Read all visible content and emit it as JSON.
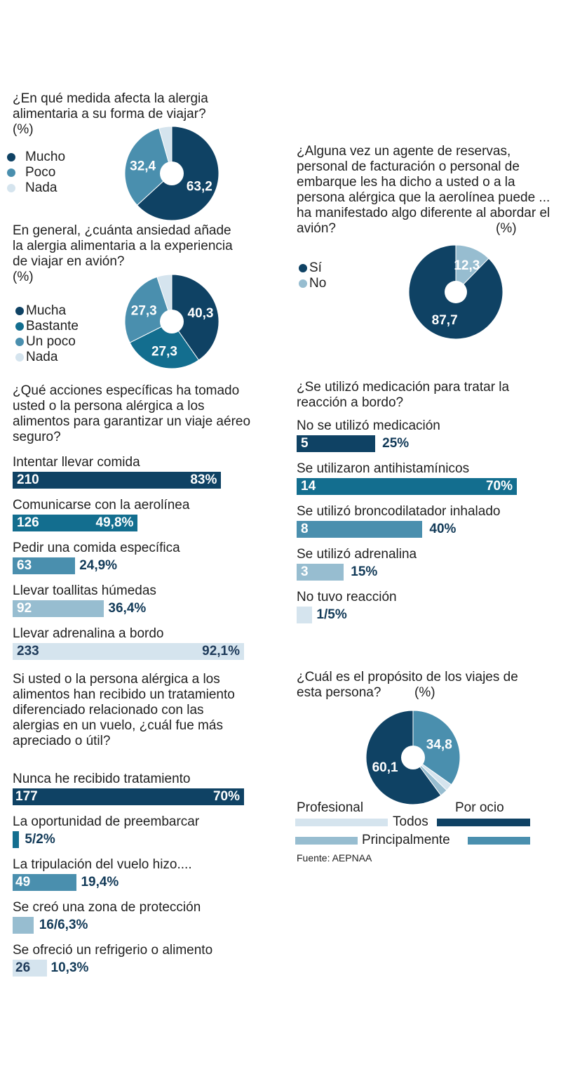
{
  "colors": {
    "dark": "#0f4264",
    "teal": "#136e8f",
    "mid": "#4a8fae",
    "light": "#97bdd0",
    "pale": "#d5e4ee"
  },
  "chart_data": [
    {
      "id": "pie1",
      "type": "pie",
      "title": "¿En qué medida afecta la alergia alimentaria a su forma de viajar?",
      "unit": "(%)",
      "legend": [
        "Mucho",
        "Poco",
        "Nada"
      ],
      "values": [
        63.2,
        32.4,
        4.4
      ],
      "labels": [
        "63,2",
        "32,4",
        ""
      ]
    },
    {
      "id": "pie2",
      "type": "pie",
      "title": "En general, ¿cuánta ansiedad añade la alergia alimentaria a la experiencia de viajar en avión?",
      "unit": "(%)",
      "legend": [
        "Mucha",
        "Bastante",
        "Un poco",
        "Nada"
      ],
      "values": [
        40.3,
        27.3,
        27.3,
        5.1
      ],
      "labels": [
        "40,3",
        "27,3",
        "27,3",
        ""
      ]
    },
    {
      "id": "bars1",
      "type": "bar",
      "title": "¿Qué acciones específicas ha tomado usted o la persona alérgica a los alimentos para garantizar un viaje aéreo seguro?",
      "categories": [
        "Intentar llevar comida",
        "Comunicarse con la aerolínea",
        "Pedir una comida específica",
        "Llevar toallitas húmedas",
        "Llevar adrenalina a bordo"
      ],
      "counts": [
        "210",
        "126",
        "63",
        "92",
        "233"
      ],
      "percent_labels": [
        "83",
        "49,8",
        "24,9",
        "36,4",
        "92,1"
      ],
      "values": [
        83,
        49.8,
        24.9,
        36.4,
        92.1
      ]
    },
    {
      "id": "bars2",
      "type": "bar",
      "title": "Si usted o la persona alérgica a los alimentos han recibido un tratamiento diferenciado relacionado con las alergias en un vuelo, ¿cuál fue más apreciado o útil?",
      "categories": [
        "Nunca he recibido tratamiento",
        "La oportunidad de preembarcar",
        "La tripulación del vuelo hizo....",
        "Se creó una zona de protección",
        "Se ofreció un refrigerio o alimento"
      ],
      "counts": [
        "177",
        "5/2",
        "49",
        "16/6,3",
        "26"
      ],
      "percent_labels": [
        "70",
        "",
        "19,4",
        "",
        "10,3"
      ],
      "values": [
        70,
        2,
        19.4,
        6.3,
        10.3
      ]
    },
    {
      "id": "pie3",
      "type": "pie",
      "title": "¿Alguna vez un agente de reservas, personal de facturación o personal de embarque les ha dicho a usted o a la persona alérgica que la aerolínea puede ... ha manifestado algo diferente al abordar el avión?",
      "unit": "(%)",
      "legend": [
        "Sí",
        "No"
      ],
      "values": [
        87.7,
        12.3
      ],
      "labels": [
        "87,7",
        "12,3"
      ]
    },
    {
      "id": "bars3",
      "type": "bar",
      "title": "¿Se utilizó medicación para tratar la reacción a bordo?",
      "categories": [
        "No se utilizó medicación",
        "Se utilizaron antihistamínicos",
        "Se utilizó broncodilatador inhalado",
        "Se utilizó adrenalina",
        "No tuvo reacción"
      ],
      "counts": [
        "5",
        "14",
        "8",
        "3",
        "1/5"
      ],
      "percent_labels": [
        "25",
        "70",
        "40",
        "15",
        ""
      ],
      "values": [
        25,
        70,
        40,
        15,
        5
      ]
    },
    {
      "id": "pie4",
      "type": "pie",
      "title": "¿Cuál es el propósito de los viajes de esta persona?",
      "unit": "(%)",
      "values": [
        34.8,
        2.5,
        2.6,
        60.1
      ],
      "labels": [
        "34,8",
        "",
        "",
        "60,1"
      ],
      "key": {
        "left": "Profesional",
        "right": "Por ocio",
        "row1": "Todos",
        "row2": "Principalmente"
      }
    }
  ],
  "pct_sign": "%",
  "source": "Fuente: AEPNAA"
}
